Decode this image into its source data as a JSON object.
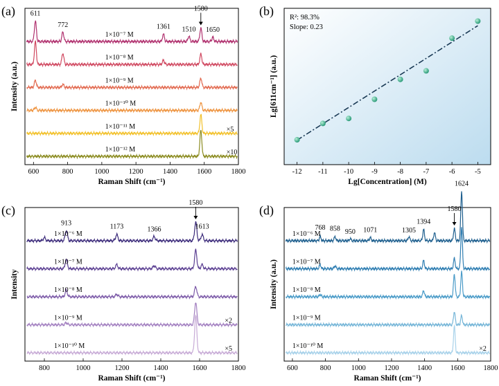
{
  "chart_data": [
    {
      "panel_label": "(a)",
      "type": "line",
      "title": "",
      "xlabel": "Raman Shift (cm⁻¹)",
      "ylabel": "Intensity (a.u.)",
      "xlim": [
        550,
        1800
      ],
      "xticks": [
        "600",
        "800",
        "1000",
        "1200",
        "1400",
        "1600",
        "1800"
      ],
      "peak_labels": [
        {
          "text": "611",
          "x": 611,
          "series": 0
        },
        {
          "text": "772",
          "x": 772,
          "series": 0
        },
        {
          "text": "1361",
          "x": 1361,
          "series": 0
        },
        {
          "text": "1510",
          "x": 1510,
          "series": 0
        },
        {
          "text": "1580",
          "x": 1580,
          "series": 0,
          "arrow": true
        },
        {
          "text": "1650",
          "x": 1650,
          "series": 0
        }
      ],
      "series": [
        {
          "name": "1×10⁻⁷ M",
          "color": "#b0306e",
          "baseline": 0,
          "peaks": [
            [
              611,
              1.0
            ],
            [
              772,
              0.45
            ],
            [
              1361,
              0.35
            ],
            [
              1510,
              0.25
            ],
            [
              1580,
              0.65
            ],
            [
              1650,
              0.2
            ]
          ],
          "note": ""
        },
        {
          "name": "1×10⁻⁸ M",
          "color": "#d04860",
          "baseline": 1,
          "peaks": [
            [
              611,
              1.1
            ],
            [
              772,
              0.55
            ],
            [
              1361,
              0.2
            ],
            [
              1580,
              0.5
            ]
          ],
          "note": ""
        },
        {
          "name": "1×10⁻⁹ M",
          "color": "#e26a50",
          "baseline": 2,
          "peaks": [
            [
              611,
              0.35
            ],
            [
              772,
              0.15
            ],
            [
              1580,
              0.45
            ]
          ],
          "note": ""
        },
        {
          "name": "1×10⁻¹⁰ M",
          "color": "#ee9440",
          "baseline": 3,
          "peaks": [
            [
              611,
              0.15
            ],
            [
              1580,
              0.4
            ]
          ],
          "note": ""
        },
        {
          "name": "1×10⁻¹¹ M",
          "color": "#f2c028",
          "baseline": 4,
          "peaks": [
            [
              1580,
              0.9
            ]
          ],
          "note": "×5"
        },
        {
          "name": "1×10⁻¹² M",
          "color": "#8a8a1e",
          "baseline": 5,
          "peaks": [
            [
              1580,
              1.25
            ]
          ],
          "note": "×10"
        }
      ]
    },
    {
      "panel_label": "(b)",
      "type": "scatter",
      "title": "",
      "xlabel": "Lg[Concentration] (M)",
      "ylabel": "Lg[611cm⁻¹] (a.u.)",
      "xlim": [
        -12.5,
        -4.5
      ],
      "ylim": [
        2.2,
        4.4
      ],
      "xticks": [
        "-12",
        "-11",
        "-10",
        "-9",
        "-8",
        "-7",
        "-6",
        "-5"
      ],
      "annotations": [
        "R²: 98.3%",
        "Slope: 0.23"
      ],
      "x": [
        -12,
        -11,
        -10,
        -9,
        -8,
        -7,
        -6,
        -5
      ],
      "y": [
        2.55,
        2.78,
        2.85,
        3.12,
        3.4,
        3.52,
        3.98,
        4.22
      ],
      "fit": {
        "slope": 0.23,
        "intercept": 5.305,
        "xrange": [
          -12,
          -5
        ]
      }
    },
    {
      "panel_label": "(c)",
      "type": "line",
      "title": "",
      "xlabel": "Raman Shift (cm⁻¹)",
      "ylabel": "Intensity",
      "xlim": [
        700,
        1800
      ],
      "xticks": [
        "800",
        "1000",
        "1200",
        "1400",
        "1600",
        "1800"
      ],
      "peak_labels": [
        {
          "text": "913",
          "x": 913,
          "series": 0
        },
        {
          "text": "1173",
          "x": 1173,
          "series": 0
        },
        {
          "text": "1366",
          "x": 1366,
          "series": 0
        },
        {
          "text": "1580",
          "x": 1580,
          "series": 0,
          "arrow": true
        },
        {
          "text": "1613",
          "x": 1613,
          "series": 0
        }
      ],
      "series": [
        {
          "name": "1×10⁻⁶ M",
          "color": "#3b2a7a",
          "baseline": 0,
          "peaks": [
            [
              800,
              0.15
            ],
            [
              913,
              0.5
            ],
            [
              1173,
              0.3
            ],
            [
              1366,
              0.2
            ],
            [
              1580,
              0.9
            ],
            [
              1613,
              0.3
            ]
          ],
          "note": ""
        },
        {
          "name": "1×10⁻⁷ M",
          "color": "#5b3f92",
          "baseline": 1,
          "peaks": [
            [
              913,
              0.45
            ],
            [
              1173,
              0.2
            ],
            [
              1366,
              0.15
            ],
            [
              1580,
              0.9
            ],
            [
              1613,
              0.2
            ]
          ],
          "note": ""
        },
        {
          "name": "1×10⁻⁸ M",
          "color": "#7c5aa8",
          "baseline": 2,
          "peaks": [
            [
              913,
              0.3
            ],
            [
              1173,
              0.12
            ],
            [
              1580,
              0.5
            ]
          ],
          "note": ""
        },
        {
          "name": "1×10⁻⁹ M",
          "color": "#a27fc0",
          "baseline": 3,
          "peaks": [
            [
              913,
              0.1
            ],
            [
              1580,
              1.1
            ]
          ],
          "note": "×2"
        },
        {
          "name": "1×10⁻¹⁰ M",
          "color": "#c7aad6",
          "baseline": 4,
          "peaks": [
            [
              1580,
              1.8
            ]
          ],
          "note": "×5"
        }
      ]
    },
    {
      "panel_label": "(d)",
      "type": "line",
      "title": "",
      "xlabel": "Raman Shift (cm⁻¹)",
      "ylabel": "Intensity (a.u.)",
      "xlim": [
        550,
        1800
      ],
      "xticks": [
        "600",
        "800",
        "1000",
        "1200",
        "1400",
        "1600",
        "1800"
      ],
      "peak_labels": [
        {
          "text": "768",
          "x": 768,
          "series": 0
        },
        {
          "text": "858",
          "x": 858,
          "series": 0
        },
        {
          "text": "950",
          "x": 950,
          "series": 0
        },
        {
          "text": "1071",
          "x": 1071,
          "series": 0
        },
        {
          "text": "1305",
          "x": 1305,
          "series": 0
        },
        {
          "text": "1394",
          "x": 1394,
          "series": 0
        },
        {
          "text": "1580",
          "x": 1580,
          "series": 0,
          "arrow": true
        },
        {
          "text": "1624",
          "x": 1624,
          "series": 0
        }
      ],
      "series": [
        {
          "name": "1×10⁻⁶ M",
          "color": "#1e5f8e",
          "baseline": 0,
          "peaks": [
            [
              768,
              0.2
            ],
            [
              858,
              0.2
            ],
            [
              950,
              0.1
            ],
            [
              1071,
              0.15
            ],
            [
              1305,
              0.2
            ],
            [
              1394,
              0.55
            ],
            [
              1460,
              0.4
            ],
            [
              1580,
              0.6
            ],
            [
              1624,
              2.4
            ]
          ],
          "note": ""
        },
        {
          "name": "1×10⁻⁷ M",
          "color": "#2f7eb2",
          "baseline": 1,
          "peaks": [
            [
              768,
              0.2
            ],
            [
              858,
              0.15
            ],
            [
              1394,
              0.4
            ],
            [
              1580,
              0.5
            ],
            [
              1624,
              2.0
            ]
          ],
          "note": ""
        },
        {
          "name": "1×10⁻⁸ M",
          "color": "#4a9bc8",
          "baseline": 2,
          "peaks": [
            [
              768,
              0.12
            ],
            [
              1394,
              0.3
            ],
            [
              1580,
              1.1
            ],
            [
              1624,
              1.2
            ]
          ],
          "note": ""
        },
        {
          "name": "1×10⁻⁹ M",
          "color": "#76b6d8",
          "baseline": 3,
          "peaks": [
            [
              1580,
              0.65
            ],
            [
              1624,
              0.45
            ]
          ],
          "note": ""
        },
        {
          "name": "1×10⁻¹⁰ M",
          "color": "#a8d2ea",
          "baseline": 4,
          "peaks": [
            [
              1580,
              1.3
            ]
          ],
          "note": "×2"
        }
      ]
    }
  ]
}
